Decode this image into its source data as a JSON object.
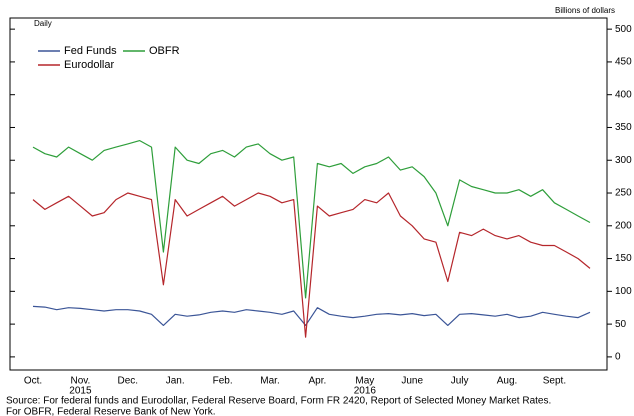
{
  "chart_data": {
    "type": "line",
    "subtitle": "Daily",
    "ylabel": "Billions of dollars",
    "categories": [
      "Oct.",
      null,
      null,
      null,
      "Nov.",
      null,
      null,
      null,
      "Dec.",
      null,
      null,
      null,
      "Jan.",
      null,
      null,
      null,
      "Feb.",
      null,
      null,
      null,
      "Mar.",
      null,
      null,
      null,
      "Apr.",
      null,
      null,
      null,
      "May",
      null,
      null,
      null,
      "June",
      null,
      null,
      null,
      "July",
      null,
      null,
      null,
      "Aug.",
      null,
      null,
      null,
      "Sept.",
      null,
      null,
      null
    ],
    "annotations": [
      {
        "text": "2015",
        "at": 4
      },
      {
        "text": "2016",
        "at": 28
      }
    ],
    "series": [
      {
        "name": "Fed Funds",
        "color": "#3b5597",
        "values": [
          77,
          76,
          72,
          75,
          74,
          72,
          70,
          72,
          72,
          70,
          65,
          48,
          65,
          62,
          64,
          68,
          70,
          68,
          72,
          70,
          68,
          65,
          70,
          48,
          75,
          65,
          62,
          60,
          62,
          65,
          66,
          64,
          66,
          63,
          65,
          48,
          65,
          66,
          64,
          62,
          65,
          60,
          62,
          68,
          65,
          62,
          60,
          68
        ]
      },
      {
        "name": "Eurodollar",
        "color": "#b5262b",
        "values": [
          240,
          225,
          235,
          245,
          230,
          215,
          220,
          240,
          250,
          245,
          240,
          110,
          240,
          215,
          225,
          235,
          245,
          230,
          240,
          250,
          245,
          235,
          240,
          30,
          230,
          215,
          220,
          225,
          240,
          235,
          250,
          215,
          200,
          180,
          175,
          115,
          190,
          185,
          195,
          185,
          180,
          185,
          175,
          170,
          170,
          160,
          150,
          135
        ]
      },
      {
        "name": "OBFR",
        "color": "#2e9e3a",
        "values": [
          320,
          310,
          305,
          320,
          310,
          300,
          315,
          320,
          325,
          330,
          320,
          160,
          320,
          300,
          295,
          310,
          315,
          305,
          320,
          325,
          310,
          300,
          305,
          90,
          295,
          290,
          295,
          280,
          290,
          295,
          305,
          285,
          290,
          275,
          250,
          200,
          270,
          260,
          255,
          250,
          250,
          255,
          245,
          255,
          235,
          225,
          215,
          205
        ]
      }
    ],
    "ylim": [
      -20,
      517
    ],
    "yticks": [
      0,
      50,
      100,
      150,
      200,
      250,
      300,
      350,
      400,
      450,
      500
    ],
    "source": [
      "Source:  For federal funds and Eurodollar, Federal Reserve Board, Form FR 2420, Report of Selected Money Market Rates.",
      "For OBFR, Federal Reserve Bank of New York."
    ]
  }
}
